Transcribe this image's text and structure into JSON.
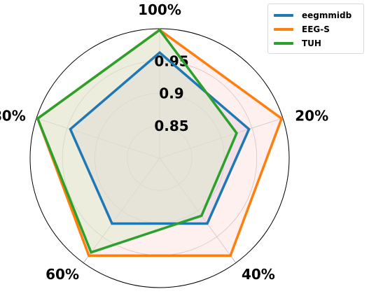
{
  "chart_data": {
    "type": "radar",
    "title": "",
    "categories": [
      "100%",
      "20%",
      "40%",
      "60%",
      "80%"
    ],
    "radial_ticks": [
      "0.85",
      "0.9",
      "0.95"
    ],
    "radial_tick_values": [
      0.85,
      0.9,
      0.95
    ],
    "rlim": [
      0.8,
      1.0
    ],
    "grid": true,
    "legend_position": "top-right",
    "series": [
      {
        "name": "eegmmidb",
        "color": "#1f77b4",
        "fill": "#c9c3de",
        "values": [
          0.963,
          0.945,
          0.925,
          0.925,
          0.945
        ]
      },
      {
        "name": "EEG-S",
        "color": "#ff7f0e",
        "fill": "#ffdede",
        "values": [
          0.998,
          0.998,
          0.986,
          0.986,
          0.998
        ]
      },
      {
        "name": "TUH",
        "color": "#2ca02c",
        "fill": "#d7e8c8",
        "values": [
          0.998,
          0.925,
          0.91,
          0.98,
          0.998
        ]
      }
    ]
  }
}
